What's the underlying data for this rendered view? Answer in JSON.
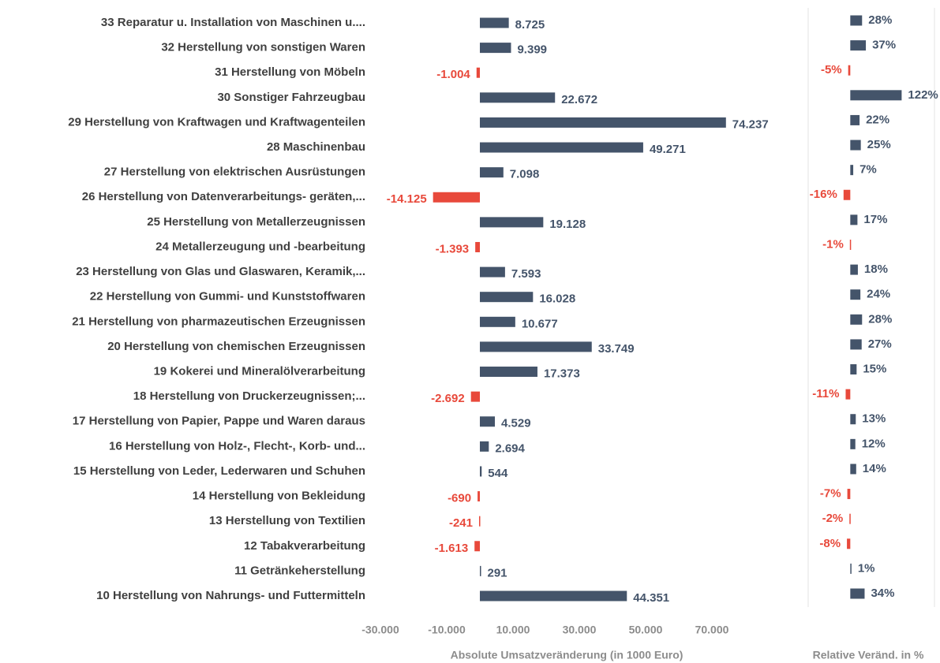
{
  "chart_data": [
    {
      "type": "bar",
      "orientation": "horizontal",
      "x_label": "Absolute Umsatzveränderung (in 1000 Euro)",
      "categories": [
        "33 Reparatur u. Installation von Maschinen u....",
        "32 Herstellung von sonstigen Waren",
        "31 Herstellung von Möbeln",
        "30 Sonstiger Fahrzeugbau",
        "29 Herstellung von Kraftwagen und Kraftwagenteilen",
        "28 Maschinenbau",
        "27 Herstellung von elektrischen Ausrüstungen",
        "26 Herstellung von Datenverarbeitungs- geräten,...",
        "25 Herstellung von Metallerzeugnissen",
        "24 Metallerzeugung und -bearbeitung",
        "23 Herstellung von Glas und Glaswaren, Keramik,...",
        "22 Herstellung von Gummi- und Kunststoffwaren",
        "21 Herstellung von pharmazeutischen Erzeugnissen",
        "20 Herstellung von chemischen Erzeugnissen",
        "19 Kokerei und Mineralölverarbeitung",
        "18 Herstellung von Druckerzeugnissen;...",
        "17 Herstellung von Papier, Pappe und Waren daraus",
        "16 Herstellung von Holz-, Flecht-, Korb- und...",
        "15 Herstellung von Leder, Lederwaren und Schuhen",
        "14 Herstellung von Bekleidung",
        "13 Herstellung von Textilien",
        "12 Tabakverarbeitung",
        "11 Getränkeherstellung",
        "10 Herstellung von Nahrungs- und Futtermitteln"
      ],
      "values": [
        8725,
        9399,
        -1004,
        22672,
        74237,
        49271,
        7098,
        -14125,
        19128,
        -1393,
        7593,
        16028,
        10677,
        33749,
        17373,
        -2692,
        4529,
        2694,
        544,
        -690,
        -241,
        -1613,
        291,
        44351
      ],
      "value_labels": [
        "8.725",
        "9.399",
        "-1.004",
        "22.672",
        "74.237",
        "49.271",
        "7.098",
        "-14.125",
        "19.128",
        "-1.393",
        "7.593",
        "16.028",
        "10.677",
        "33.749",
        "17.373",
        "-2.692",
        "4.529",
        "2.694",
        "544",
        "-690",
        "-241",
        "-1.613",
        "291",
        "44.351"
      ],
      "color": "#44546a",
      "negative_color": "#e8493b",
      "xlim": [
        -30000,
        80000
      ],
      "xticks": [
        {
          "value": -30000,
          "label": "-30.000"
        },
        {
          "value": -10000,
          "label": "-10.000"
        },
        {
          "value": 10000,
          "label": "10.000"
        },
        {
          "value": 30000,
          "label": "30.000"
        },
        {
          "value": 50000,
          "label": "50.000"
        },
        {
          "value": 70000,
          "label": "70.000"
        }
      ]
    },
    {
      "type": "bar",
      "orientation": "horizontal",
      "x_label": "Relative Veränd. in %",
      "values": [
        28,
        37,
        -5,
        122,
        22,
        25,
        7,
        -16,
        17,
        -1,
        18,
        24,
        28,
        27,
        15,
        -11,
        13,
        12,
        14,
        -7,
        -2,
        -8,
        1,
        34
      ],
      "value_labels": [
        "28%",
        "37%",
        "-5%",
        "122%",
        "22%",
        "25%",
        "7%",
        "-16%",
        "17%",
        "-1%",
        "18%",
        "24%",
        "28%",
        "27%",
        "15%",
        "-11%",
        "13%",
        "12%",
        "14%",
        "-7%",
        "-2%",
        "-8%",
        "1%",
        "34%"
      ],
      "color": "#44546a",
      "negative_color": "#e8493b",
      "xlim": [
        -100,
        200
      ],
      "grid": true
    }
  ]
}
